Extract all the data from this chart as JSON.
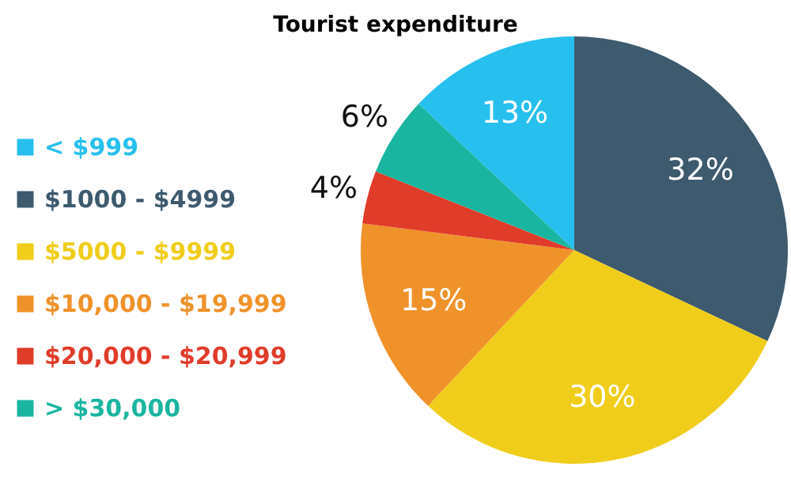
{
  "chart_data": {
    "type": "pie",
    "title": "Tourist expenditure",
    "categories": [
      "< $999",
      "$1000 - $4999",
      "$5000 - $9999",
      "$10,000 - $19,999",
      "$20,000 - $20,999",
      "> $30,000"
    ],
    "values": [
      13,
      32,
      30,
      15,
      4,
      6
    ],
    "colors": [
      "#27c0ee",
      "#3d5a6e",
      "#f0cd1a",
      "#f0922a",
      "#e03c2a",
      "#1ab5a0"
    ],
    "value_labels": [
      "13%",
      "32%",
      "30%",
      "15%",
      "4%",
      "6%"
    ],
    "legend": "left"
  }
}
